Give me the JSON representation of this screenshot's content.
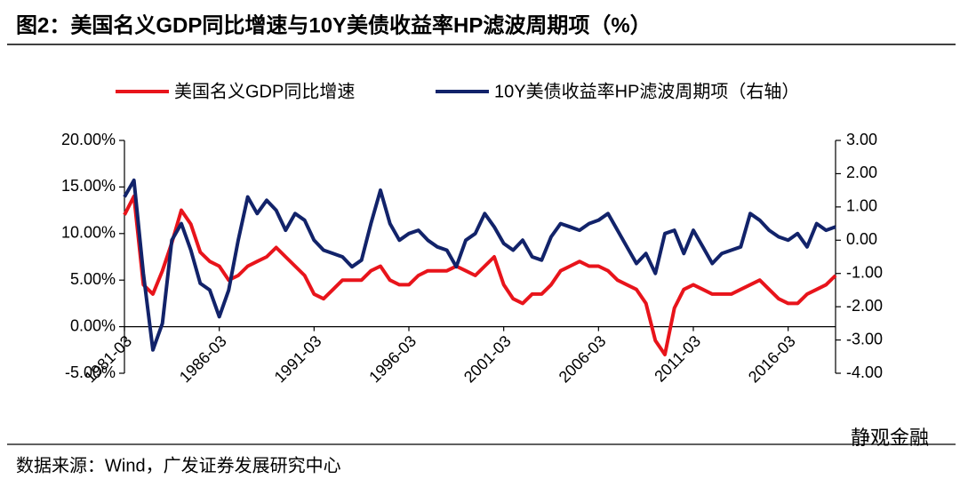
{
  "chart_data": {
    "type": "line",
    "title": "图2：美国名义GDP同比增速与10Y美债收益率HP滤波周期项（%）",
    "source": "数据来源：Wind，广发证券发展研究中心",
    "watermark": "静观金融",
    "categories": [
      "1981-03",
      null,
      null,
      null,
      null,
      null,
      null,
      null,
      null,
      null,
      "1986-03",
      null,
      null,
      null,
      null,
      null,
      null,
      null,
      null,
      null,
      "1991-03",
      null,
      null,
      null,
      null,
      null,
      null,
      null,
      null,
      null,
      "1996-03",
      null,
      null,
      null,
      null,
      null,
      null,
      null,
      null,
      null,
      "2001-03",
      null,
      null,
      null,
      null,
      null,
      null,
      null,
      null,
      null,
      "2006-03",
      null,
      null,
      null,
      null,
      null,
      null,
      null,
      null,
      null,
      "2011-03",
      null,
      null,
      null,
      null,
      null,
      null,
      null,
      null,
      null,
      "2016-03",
      null,
      null,
      null,
      null,
      null
    ],
    "series": [
      {
        "name": "美国名义GDP同比增速",
        "color": "#e8141b",
        "values": [
          12,
          14,
          4.5,
          3.5,
          6,
          9,
          12.5,
          11,
          8,
          7,
          6.5,
          5,
          5.5,
          6.5,
          7,
          7.5,
          8.5,
          7.5,
          6.5,
          5.5,
          3.5,
          3,
          4,
          5,
          5,
          5,
          6,
          6.5,
          5,
          4.5,
          4.5,
          5.5,
          6,
          6,
          6,
          6.5,
          6,
          5.5,
          6.5,
          7.5,
          4.5,
          3,
          2.5,
          3.5,
          3.5,
          4.5,
          6,
          6.5,
          7,
          6.5,
          6.5,
          6,
          5,
          4.5,
          4,
          2.5,
          -1.5,
          -3,
          2,
          4,
          4.5,
          4,
          3.5,
          3.5,
          3.5,
          4,
          4.5,
          5,
          4,
          3,
          2.5,
          2.5,
          3.5,
          4,
          4.5,
          5.5
        ]
      },
      {
        "name": "10Y美债收益率HP滤波周期项（右轴）",
        "color": "#12236a",
        "axis": "y2",
        "values": [
          1.3,
          1.8,
          -1,
          -3.3,
          -2.5,
          0,
          0.5,
          -0.3,
          -1.3,
          -1.5,
          -2.3,
          -1.5,
          0,
          1.3,
          0.8,
          1.2,
          0.9,
          0.3,
          0.8,
          0.6,
          0,
          -0.3,
          -0.4,
          -0.5,
          -0.8,
          -0.6,
          0.5,
          1.5,
          0.5,
          0,
          0.2,
          0.3,
          0,
          -0.2,
          -0.3,
          -0.8,
          0,
          0.2,
          0.8,
          0.4,
          -0.1,
          -0.3,
          0,
          -0.5,
          -0.6,
          0.1,
          0.5,
          0.4,
          0.3,
          0.5,
          0.6,
          0.8,
          0.3,
          -0.2,
          -0.7,
          -0.4,
          -1,
          0.2,
          0.3,
          -0.4,
          0.3,
          -0.2,
          -0.7,
          -0.4,
          -0.3,
          -0.2,
          0.8,
          0.6,
          0.3,
          0.1,
          0,
          0.2,
          -0.2,
          0.5,
          0.3,
          0.4
        ]
      }
    ],
    "ylim": [
      -5,
      20
    ],
    "yticks": [
      {
        "value": -5,
        "label": "-5.00%"
      },
      {
        "value": 0,
        "label": "0.00%"
      },
      {
        "value": 5,
        "label": "5.00%"
      },
      {
        "value": 10,
        "label": "10.00%"
      },
      {
        "value": 15,
        "label": "15.00%"
      },
      {
        "value": 20,
        "label": "20.00%"
      }
    ],
    "y2lim": [
      -4,
      3
    ],
    "y2ticks": [
      {
        "value": -4,
        "label": "-4.00"
      },
      {
        "value": -3,
        "label": "-3.00"
      },
      {
        "value": -2,
        "label": "-2.00"
      },
      {
        "value": -1,
        "label": "-1.00"
      },
      {
        "value": 0,
        "label": "0.00"
      },
      {
        "value": 1,
        "label": "1.00"
      },
      {
        "value": 2,
        "label": "2.00"
      },
      {
        "value": 3,
        "label": "3.00"
      }
    ],
    "grid": false,
    "legend": "top"
  }
}
